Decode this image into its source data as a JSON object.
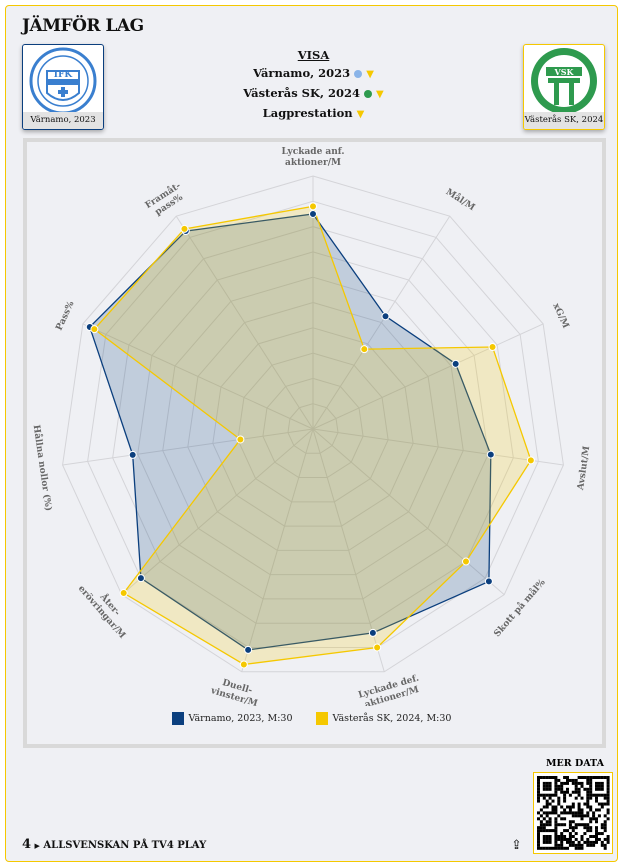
{
  "header": {
    "title": "JÄMFÖR LAG",
    "visa": "VISA",
    "team1": "Värnamo, 2023",
    "team2": "Västerås SK, 2024",
    "mode": "Lagprestation"
  },
  "logos": {
    "left_caption": "Värnamo, 2023",
    "left_text": "IFK",
    "left_ring": "VÄRNAMO",
    "right_caption": "Västerås SK, 2024",
    "right_text": "VSK"
  },
  "colors": {
    "team1": "#0b3f7e",
    "team2": "#f5c800"
  },
  "chart_data": {
    "type": "radar",
    "axes": [
      "Lyckade anf. aktioner/M",
      "Mål/M",
      "xG/M",
      "Avslut/M",
      "Skott på mål%",
      "Lyckade def. aktioner/M",
      "Duell-vinster/M",
      "Åter-erövringar/M",
      "Hållna nollor (%)",
      "Pass%",
      "Framåt-pass%"
    ],
    "axis_label_lines": [
      [
        "Lyckade anf.",
        "aktioner/M"
      ],
      [
        "Mål/M"
      ],
      [
        "xG/M"
      ],
      [
        "Avslut/M"
      ],
      [
        "Skott på mål%"
      ],
      [
        "Lyckade def.",
        "aktioner/M"
      ],
      [
        "Duell-",
        "vinster/M"
      ],
      [
        "Åter-",
        "erövringar/M"
      ],
      [
        "Hållna nollor (%)"
      ],
      [
        "Pass%"
      ],
      [
        "Framåt-",
        "pass%"
      ]
    ],
    "range": [
      0,
      1
    ],
    "rings": 10,
    "series": [
      {
        "name": "Värnamo, 2023, M:30",
        "color": "#0b3f7e",
        "values": [
          0.85,
          0.53,
          0.62,
          0.71,
          0.92,
          0.84,
          0.91,
          0.9,
          0.72,
          0.97,
          0.93
        ]
      },
      {
        "name": "Västerås SK, 2024, M:30",
        "color": "#f5c800",
        "values": [
          0.88,
          0.375,
          0.78,
          0.87,
          0.8,
          0.9,
          0.97,
          0.99,
          0.29,
          0.95,
          0.94
        ]
      }
    ],
    "legend": "bottom"
  },
  "footer": {
    "brand": "4",
    "link": "ALLSVENSKAN PÅ TV4 PLAY",
    "mer_data": "MER DATA"
  }
}
